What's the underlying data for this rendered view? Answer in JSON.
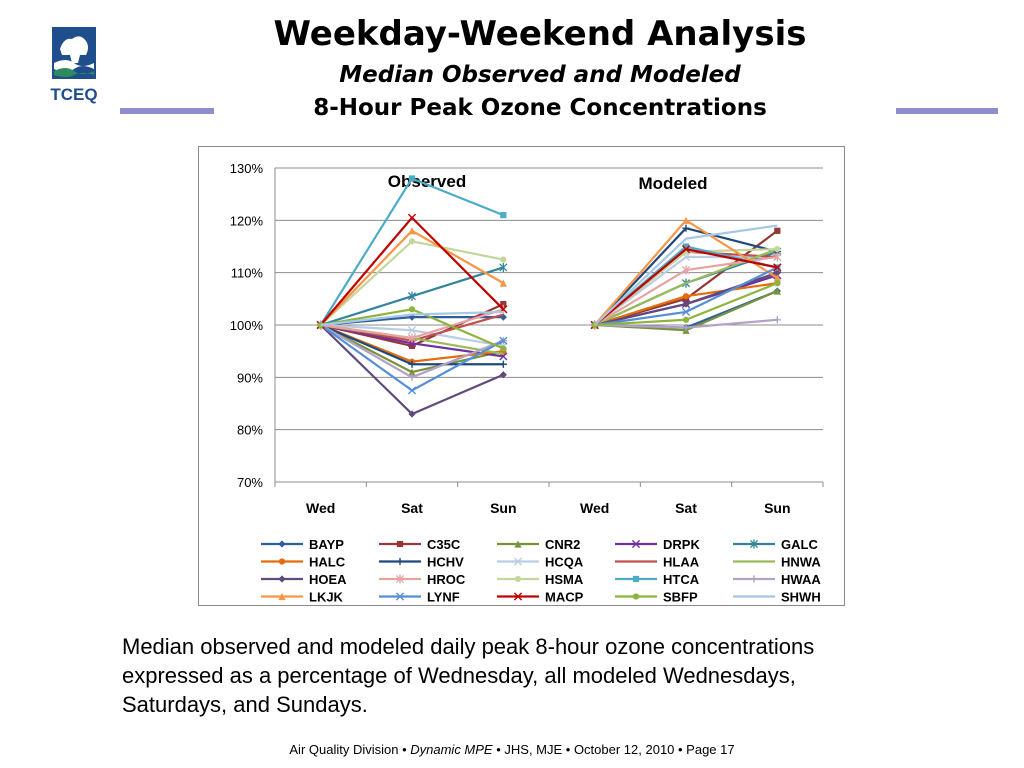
{
  "header": {
    "title": "Weekday-Weekend Analysis",
    "subtitle1": "Median Observed and Modeled",
    "subtitle2": "8-Hour Peak Ozone Concentrations",
    "logo_text": "TCEQ",
    "accent_color": "#8e8ecf"
  },
  "chart_data": {
    "type": "line",
    "panels": [
      "Observed",
      "Modeled"
    ],
    "categories": [
      "Wed",
      "Sat",
      "Sun",
      "Wed",
      "Sat",
      "Sun"
    ],
    "yticks": [
      "70%",
      "80%",
      "90%",
      "100%",
      "110%",
      "120%",
      "130%"
    ],
    "ylim": [
      70,
      130
    ],
    "grid": true,
    "legend_position": "bottom",
    "series": [
      {
        "name": "BAYP",
        "color": "#2e5e9e",
        "marker": "diamond",
        "observed": [
          100,
          101.5,
          101.5
        ],
        "modeled": [
          100,
          99.5,
          106.5
        ]
      },
      {
        "name": "C35C",
        "color": "#953735",
        "marker": "square",
        "observed": [
          100,
          96,
          104
        ],
        "modeled": [
          100,
          105,
          118
        ]
      },
      {
        "name": "CNR2",
        "color": "#77933c",
        "marker": "triangle",
        "observed": [
          100,
          91,
          95
        ],
        "modeled": [
          100,
          99,
          106.5
        ]
      },
      {
        "name": "DRPK",
        "color": "#7030a0",
        "marker": "x",
        "observed": [
          100,
          96.5,
          94
        ],
        "modeled": [
          100,
          104,
          109.5
        ]
      },
      {
        "name": "GALC",
        "color": "#31849b",
        "marker": "star",
        "observed": [
          100,
          105.5,
          111
        ],
        "modeled": [
          100,
          108,
          114
        ]
      },
      {
        "name": "HALC",
        "color": "#e46c0a",
        "marker": "circle",
        "observed": [
          100,
          93,
          95
        ],
        "modeled": [
          100,
          105.5,
          108
        ]
      },
      {
        "name": "HCHV",
        "color": "#1f497d",
        "marker": "plus",
        "observed": [
          100,
          92.5,
          92.5
        ],
        "modeled": [
          100,
          118.5,
          114
        ]
      },
      {
        "name": "HCQA",
        "color": "#b9cde5",
        "marker": "x",
        "observed": [
          100,
          99,
          96
        ],
        "modeled": [
          100,
          113,
          113
        ]
      },
      {
        "name": "HLAA",
        "color": "#c0504d",
        "marker": "none",
        "observed": [
          100,
          97,
          102
        ],
        "modeled": [
          100,
          114,
          113
        ]
      },
      {
        "name": "HNWA",
        "color": "#9bbb59",
        "marker": "none",
        "observed": [
          100,
          97.5,
          94.5
        ],
        "modeled": [
          100,
          108,
          114.5
        ]
      },
      {
        "name": "HOEA",
        "color": "#604a7b",
        "marker": "diamond",
        "observed": [
          100,
          83,
          90.5
        ],
        "modeled": [
          100,
          104,
          110
        ]
      },
      {
        "name": "HROC",
        "color": "#e6a3a1",
        "marker": "star",
        "observed": [
          100,
          97.5,
          103
        ],
        "modeled": [
          100,
          110.5,
          113
        ]
      },
      {
        "name": "HSMA",
        "color": "#c3d69b",
        "marker": "circle",
        "observed": [
          100,
          116,
          112.5
        ],
        "modeled": [
          100,
          114,
          114.5
        ]
      },
      {
        "name": "HTCA",
        "color": "#4bacc6",
        "marker": "square",
        "observed": [
          100,
          128,
          121
        ],
        "modeled": [
          100,
          115,
          111
        ]
      },
      {
        "name": "HWAA",
        "color": "#b3a2c7",
        "marker": "plus",
        "observed": [
          100,
          90,
          97
        ],
        "modeled": [
          100,
          99.5,
          101
        ]
      },
      {
        "name": "LKJK",
        "color": "#f79646",
        "marker": "triangle",
        "observed": [
          100,
          118,
          108
        ],
        "modeled": [
          100,
          120,
          109
        ]
      },
      {
        "name": "LYNF",
        "color": "#558ed5",
        "marker": "x",
        "observed": [
          100,
          87.5,
          97
        ],
        "modeled": [
          100,
          102.5,
          111
        ]
      },
      {
        "name": "MACP",
        "color": "#c00000",
        "marker": "x",
        "observed": [
          100,
          120.5,
          103
        ],
        "modeled": [
          100,
          114.5,
          111
        ]
      },
      {
        "name": "SBFP",
        "color": "#8eb43e",
        "marker": "circle",
        "observed": [
          100,
          103,
          95.5
        ],
        "modeled": [
          100,
          101,
          108
        ]
      },
      {
        "name": "SHWH",
        "color": "#a5c8e4",
        "marker": "none",
        "observed": [
          100,
          102,
          102.5
        ],
        "modeled": [
          100,
          116.5,
          119
        ]
      }
    ]
  },
  "caption": "Median observed and modeled daily peak 8-hour ozone concentrations expressed as a percentage of Wednesday, all modeled Wednesdays, Saturdays, and Sundays.",
  "footer": {
    "part1": "Air Quality Division • ",
    "part2": "Dynamic MPE",
    "part3": " •  JHS, MJE  •  October 12, 2010  •   Page 17"
  }
}
